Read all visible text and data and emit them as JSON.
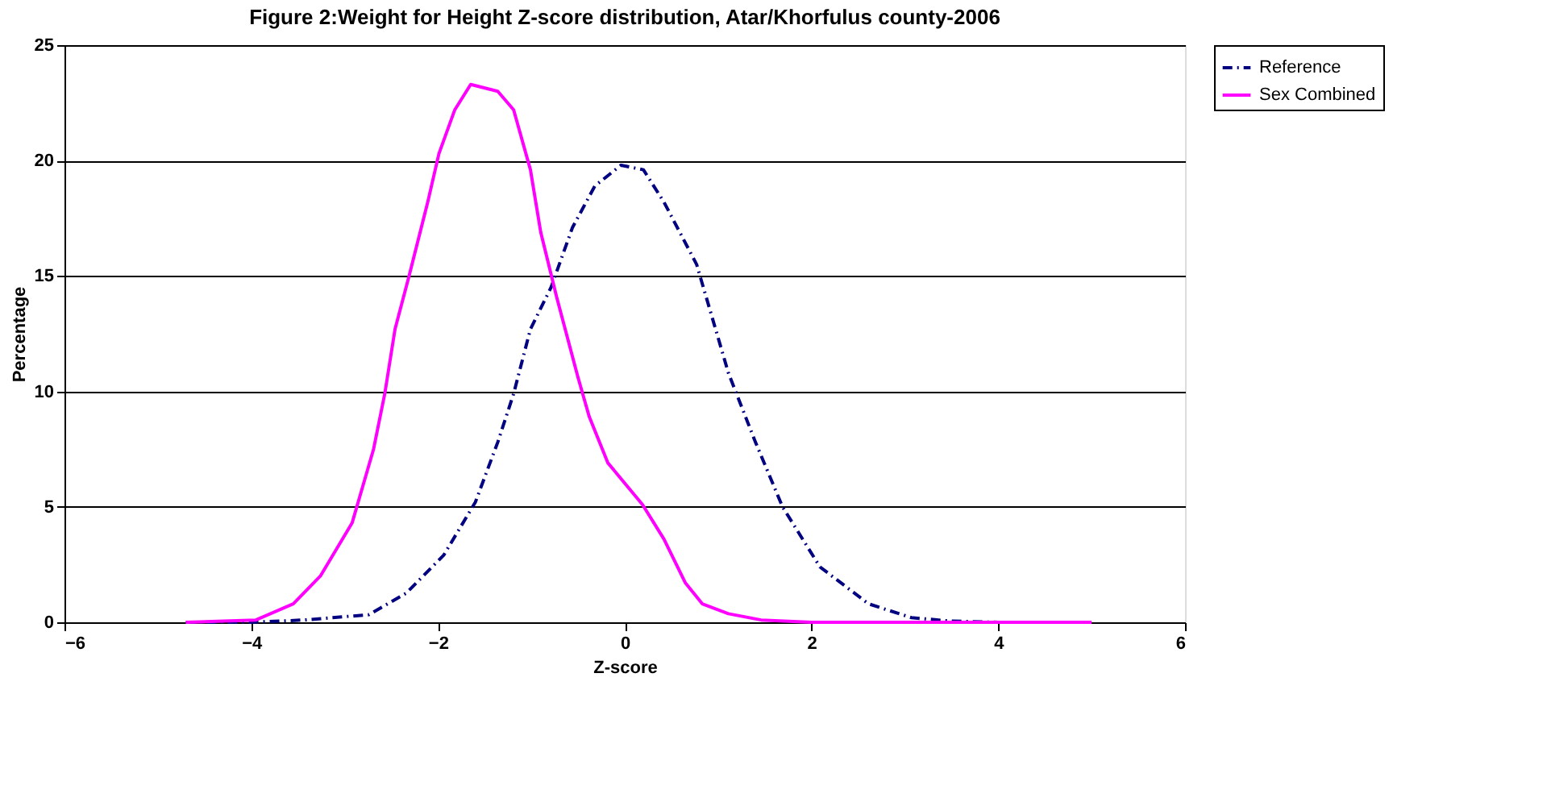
{
  "chart_data": {
    "type": "line",
    "title": "Figure 2:Weight for Height Z-score distribution, Atar/Khorfulus county-2006",
    "xlabel": "Z-score",
    "ylabel": "Percentage",
    "xlim": [
      -6,
      6
    ],
    "xticks": [
      -6,
      -4,
      -2,
      0,
      2,
      4,
      6
    ],
    "ylim": [
      0,
      25
    ],
    "yticks": [
      0,
      5,
      10,
      15,
      20,
      25
    ],
    "grid": "y",
    "legend": "right",
    "marker": "none",
    "series": [
      {
        "name": "Reference",
        "color": "#000080",
        "line_style": "dashed",
        "x": [
          -4.7,
          -4.0,
          -3.43,
          -2.74,
          -2.34,
          -1.94,
          -1.6,
          -1.36,
          -1.19,
          -1.01,
          -0.79,
          -0.56,
          -0.32,
          -0.04,
          0.2,
          0.42,
          0.77,
          1.11,
          1.4,
          1.69,
          2.09,
          2.61,
          3.07,
          3.5,
          4.0,
          5.0
        ],
        "values": [
          0,
          0,
          0.1,
          0.33,
          1.26,
          2.9,
          5.2,
          7.8,
          9.9,
          12.7,
          14.5,
          17.1,
          18.9,
          19.8,
          19.6,
          18.2,
          15.5,
          10.8,
          7.8,
          5.0,
          2.4,
          0.8,
          0.2,
          0.05,
          0,
          0
        ]
      },
      {
        "name": "Sex Combined",
        "color": "#ff00ff",
        "line_style": "solid",
        "x": [
          -4.7,
          -3.95,
          -3.55,
          -3.26,
          -2.92,
          -2.69,
          -2.57,
          -2.46,
          -2.31,
          -2.11,
          -1.99,
          -1.82,
          -1.65,
          -1.36,
          -1.19,
          -1.01,
          -0.9,
          -0.73,
          -0.5,
          -0.38,
          -0.18,
          0.19,
          0.42,
          0.65,
          0.83,
          1.11,
          1.46,
          2.0,
          3.0,
          4.0,
          5.0
        ],
        "values": [
          0,
          0.1,
          0.8,
          2.0,
          4.3,
          7.5,
          9.9,
          12.7,
          15.0,
          18.2,
          20.3,
          22.2,
          23.3,
          23.0,
          22.2,
          19.6,
          16.9,
          14.1,
          10.6,
          8.9,
          6.9,
          5.1,
          3.6,
          1.7,
          0.8,
          0.37,
          0.1,
          0,
          0,
          0,
          0
        ]
      }
    ]
  }
}
